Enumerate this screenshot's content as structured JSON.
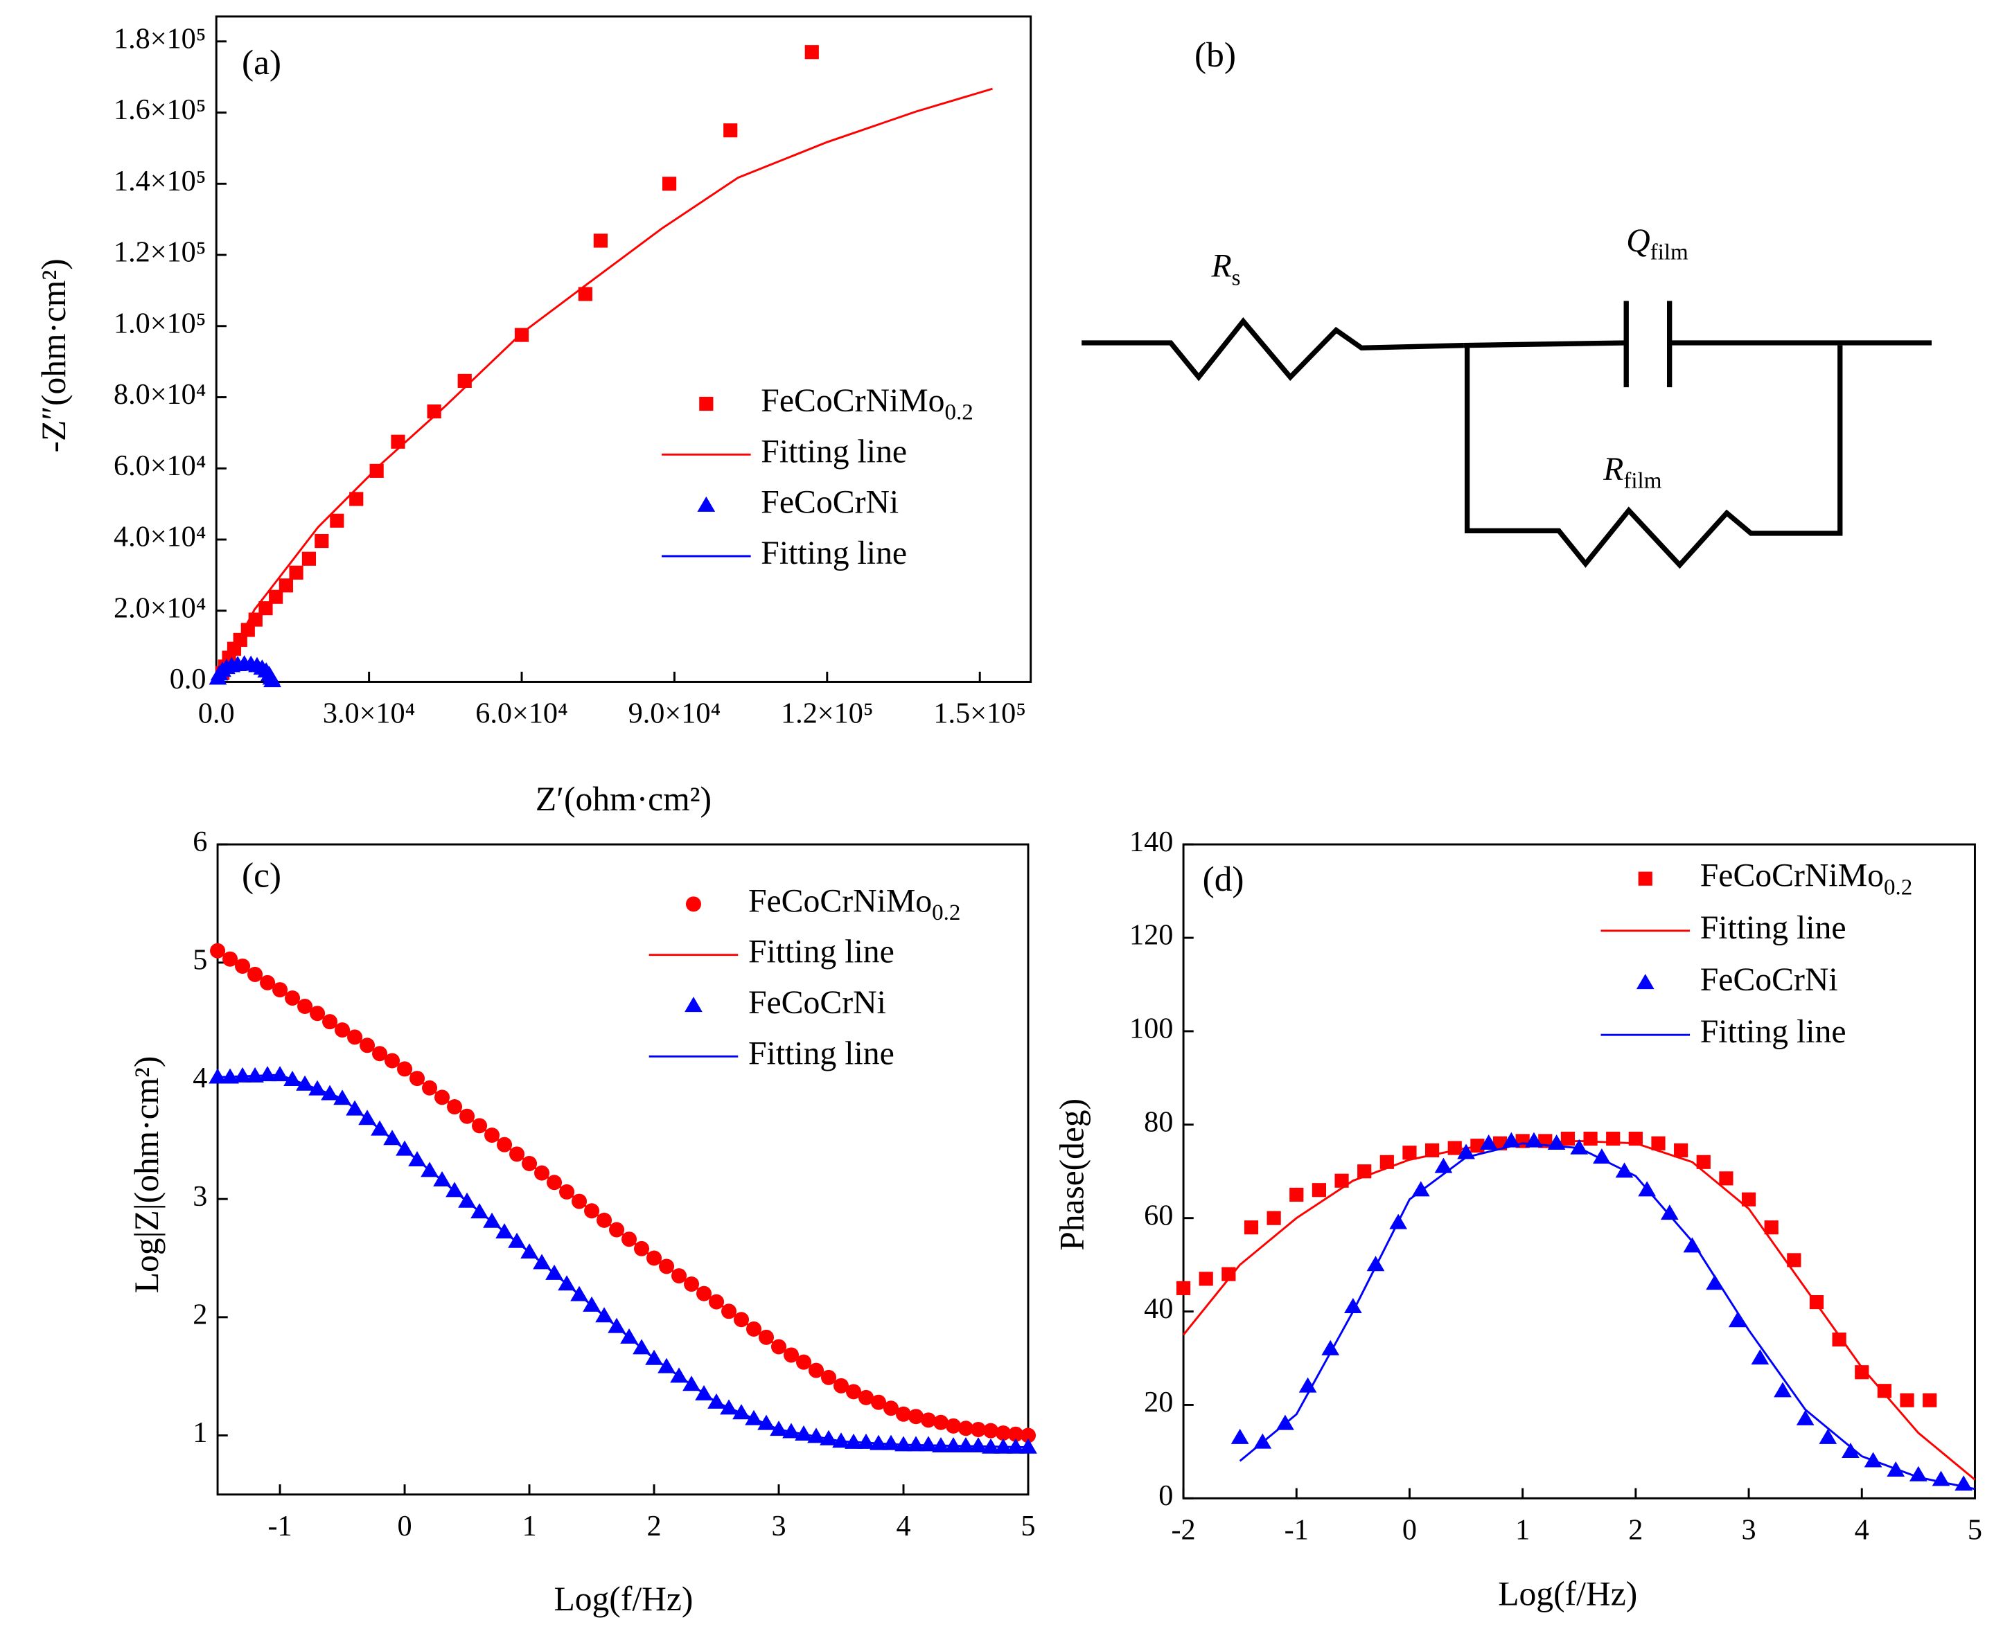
{
  "chart_data": [
    {
      "type": "scatter",
      "label": "(a)",
      "xlabel": "Z′(ohm·cm²)",
      "ylabel": "-Z″(ohm·cm²)",
      "xlim": [
        0,
        160000
      ],
      "ylim": [
        0,
        187000
      ],
      "legend": "center right",
      "xticks": [
        {
          "value": 0,
          "label": "0.0"
        },
        {
          "value": 30000,
          "label": "3.0×10⁴"
        },
        {
          "value": 60000,
          "label": "6.0×10⁴"
        },
        {
          "value": 90000,
          "label": "9.0×10⁴"
        },
        {
          "value": 120000,
          "label": "1.2×10⁵"
        },
        {
          "value": 150000,
          "label": "1.5×10⁵"
        }
      ],
      "yticks": [
        {
          "value": 0,
          "label": "0.0"
        },
        {
          "value": 20000,
          "label": "2.0×10⁴"
        },
        {
          "value": 40000,
          "label": "4.0×10⁴"
        },
        {
          "value": 60000,
          "label": "6.0×10⁴"
        },
        {
          "value": 80000,
          "label": "8.0×10⁴"
        },
        {
          "value": 100000,
          "label": "1.0×10⁵"
        },
        {
          "value": 120000,
          "label": "1.2×10⁵"
        },
        {
          "value": 140000,
          "label": "1.4×10⁵"
        },
        {
          "value": 160000,
          "label": "1.6×10⁵"
        },
        {
          "value": 180000,
          "label": "1.8×10⁵"
        }
      ],
      "series": [
        {
          "name": "FeCoCrNiMo0.2",
          "color": "#ff0000",
          "marker": "square",
          "x": [
            117000,
            101000,
            89000,
            75500,
            72500,
            60000,
            48800,
            42800,
            35700,
            31500,
            27500,
            23700,
            20700,
            18200,
            15700,
            13700,
            11700,
            9700,
            7700,
            6200,
            4700,
            3500,
            2500,
            1700,
            1200
          ],
          "values": [
            177000,
            155000,
            140000,
            124000,
            109000,
            97500,
            84600,
            76000,
            67500,
            59300,
            51400,
            45300,
            39600,
            34600,
            30700,
            27100,
            23900,
            20700,
            17500,
            14600,
            11800,
            9300,
            6800,
            4300,
            2500
          ]
        },
        {
          "name": "Fitting line",
          "color": "#ff0000",
          "x": [
            0,
            7500,
            20000,
            32500,
            45000,
            60000,
            72500,
            87500,
            102500,
            120000,
            137500,
            152500
          ],
          "values": [
            0,
            20300,
            43500,
            61400,
            77500,
            98000,
            111400,
            127400,
            141700,
            151700,
            160300,
            166700
          ]
        },
        {
          "name": "FeCoCrNi",
          "color": "#0000ff",
          "marker": "triangle",
          "x": [
            300,
            600,
            1200,
            2000,
            3000,
            4200,
            5500,
            6800,
            8000,
            9000,
            9800,
            10400,
            10800,
            11000
          ],
          "values": [
            1000,
            2200,
            3200,
            4000,
            4500,
            4800,
            5000,
            4900,
            4500,
            3800,
            3000,
            2000,
            1000,
            300
          ]
        },
        {
          "name": "Fitting line",
          "color": "#0000ff",
          "x": [
            300,
            600,
            1200,
            2000,
            3000,
            4200,
            5500,
            6800,
            8000,
            9000,
            9800,
            10400,
            10800,
            11000
          ],
          "values": [
            1000,
            2200,
            3200,
            4000,
            4500,
            4800,
            5000,
            4900,
            4500,
            3800,
            3000,
            2000,
            1000,
            300
          ]
        }
      ]
    },
    {
      "type": "scatter",
      "label": "(c)",
      "xlabel": "Log(f/Hz)",
      "ylabel": "Log|Z|(ohm·cm²)",
      "xlim": [
        -1.5,
        5
      ],
      "ylim": [
        0.5,
        6
      ],
      "legend": "upper right",
      "xticks": [
        -1,
        0,
        1,
        2,
        3,
        4,
        5
      ],
      "yticks": [
        1,
        2,
        3,
        4,
        5,
        6
      ],
      "series": [
        {
          "name": "FeCoCrNiMo0.2",
          "color": "#ff0000",
          "marker": "circle",
          "x": [
            -1.5,
            -1.4,
            -1.3,
            -1.2,
            -1.1,
            -1.0,
            -0.9,
            -0.8,
            -0.7,
            -0.6,
            -0.5,
            -0.4,
            -0.3,
            -0.2,
            -0.1,
            0,
            0.1,
            0.2,
            0.3,
            0.4,
            0.5,
            0.6,
            0.7,
            0.8,
            0.9,
            1.0,
            1.1,
            1.2,
            1.3,
            1.4,
            1.5,
            1.6,
            1.7,
            1.8,
            1.9,
            2.0,
            2.1,
            2.2,
            2.3,
            2.4,
            2.5,
            2.6,
            2.7,
            2.8,
            2.9,
            3.0,
            3.1,
            3.2,
            3.3,
            3.4,
            3.5,
            3.6,
            3.7,
            3.8,
            3.9,
            4.0,
            4.1,
            4.2,
            4.3,
            4.4,
            4.5,
            4.6,
            4.7,
            4.8,
            4.9,
            5.0
          ],
          "values": [
            5.1,
            5.03,
            4.97,
            4.9,
            4.83,
            4.77,
            4.7,
            4.63,
            4.57,
            4.5,
            4.43,
            4.37,
            4.3,
            4.23,
            4.17,
            4.1,
            4.02,
            3.94,
            3.86,
            3.78,
            3.7,
            3.62,
            3.54,
            3.46,
            3.38,
            3.3,
            3.22,
            3.14,
            3.06,
            2.98,
            2.9,
            2.82,
            2.74,
            2.66,
            2.58,
            2.5,
            2.43,
            2.35,
            2.28,
            2.2,
            2.13,
            2.05,
            1.98,
            1.9,
            1.83,
            1.75,
            1.68,
            1.62,
            1.55,
            1.49,
            1.42,
            1.37,
            1.32,
            1.28,
            1.23,
            1.18,
            1.16,
            1.13,
            1.11,
            1.08,
            1.06,
            1.05,
            1.04,
            1.02,
            1.01,
            1.0
          ]
        },
        {
          "name": "Fitting line",
          "color": "#ff0000",
          "x": [
            -1.5,
            -1,
            -0.5,
            0,
            0.5,
            1,
            1.5,
            2,
            2.5,
            3,
            3.5,
            4,
            4.5,
            5
          ],
          "values": [
            5.1,
            4.77,
            4.43,
            4.1,
            3.7,
            3.3,
            2.9,
            2.5,
            2.13,
            1.75,
            1.42,
            1.18,
            1.06,
            1.0
          ]
        },
        {
          "name": "FeCoCrNi",
          "color": "#0000ff",
          "marker": "triangle",
          "x": [
            -1.5,
            -1.4,
            -1.3,
            -1.2,
            -1.1,
            -1.0,
            -0.9,
            -0.8,
            -0.7,
            -0.6,
            -0.5,
            -0.4,
            -0.3,
            -0.2,
            -0.1,
            0,
            0.1,
            0.2,
            0.3,
            0.4,
            0.5,
            0.6,
            0.7,
            0.8,
            0.9,
            1.0,
            1.1,
            1.2,
            1.3,
            1.4,
            1.5,
            1.6,
            1.7,
            1.8,
            1.9,
            2.0,
            2.1,
            2.2,
            2.3,
            2.4,
            2.5,
            2.6,
            2.7,
            2.8,
            2.9,
            3.0,
            3.1,
            3.2,
            3.3,
            3.4,
            3.5,
            3.6,
            3.7,
            3.8,
            3.9,
            4.0,
            4.1,
            4.2,
            4.3,
            4.4,
            4.5,
            4.6,
            4.7,
            4.8,
            4.9,
            5.0
          ],
          "values": [
            4.03,
            4.03,
            4.04,
            4.04,
            4.05,
            4.05,
            4.01,
            3.97,
            3.93,
            3.89,
            3.85,
            3.76,
            3.68,
            3.59,
            3.51,
            3.42,
            3.33,
            3.24,
            3.16,
            3.07,
            2.98,
            2.89,
            2.81,
            2.72,
            2.64,
            2.55,
            2.46,
            2.37,
            2.28,
            2.19,
            2.1,
            2.01,
            1.92,
            1.83,
            1.74,
            1.65,
            1.58,
            1.5,
            1.43,
            1.35,
            1.28,
            1.23,
            1.19,
            1.14,
            1.1,
            1.05,
            1.03,
            1.01,
            0.99,
            0.97,
            0.95,
            0.94,
            0.94,
            0.93,
            0.93,
            0.92,
            0.92,
            0.92,
            0.91,
            0.91,
            0.91,
            0.91,
            0.9,
            0.9,
            0.9,
            0.9
          ]
        },
        {
          "name": "Fitting line",
          "color": "#0000ff",
          "x": [
            -1.5,
            -1,
            -0.5,
            0,
            0.5,
            1,
            1.5,
            2,
            2.5,
            3,
            3.5,
            4,
            4.5,
            5
          ],
          "values": [
            4.03,
            4.05,
            3.85,
            3.42,
            2.98,
            2.55,
            2.1,
            1.65,
            1.28,
            1.05,
            0.95,
            0.92,
            0.91,
            0.9
          ]
        }
      ]
    },
    {
      "type": "scatter",
      "label": "(d)",
      "xlabel": "Log(f/Hz)",
      "ylabel": "Phase(deg)",
      "xlim": [
        -2,
        5
      ],
      "ylim": [
        0,
        140
      ],
      "legend": "upper right",
      "xticks": [
        -2,
        -1,
        0,
        1,
        2,
        3,
        4,
        5
      ],
      "yticks": [
        0,
        20,
        40,
        60,
        80,
        100,
        120,
        140
      ],
      "series": [
        {
          "name": "FeCoCrNiMo0.2",
          "color": "#ff0000",
          "marker": "square",
          "x": [
            -2,
            -1.8,
            -1.6,
            -1.4,
            -1.2,
            -1.0,
            -0.8,
            -0.6,
            -0.4,
            -0.2,
            0,
            0.2,
            0.4,
            0.6,
            0.8,
            1.0,
            1.2,
            1.4,
            1.6,
            1.8,
            2.0,
            2.2,
            2.4,
            2.6,
            2.8,
            3.0,
            3.2,
            3.4,
            3.6,
            3.8,
            4.0,
            4.2,
            4.4,
            4.6
          ],
          "values": [
            45,
            47,
            48,
            58,
            60,
            65,
            66,
            68,
            70,
            72,
            74,
            74.5,
            75,
            75.5,
            76,
            76.5,
            76.5,
            77,
            77,
            77,
            77,
            76,
            74.5,
            72,
            68.5,
            64,
            58,
            51,
            42,
            34,
            27,
            23,
            21,
            21
          ]
        },
        {
          "name": "Fitting line",
          "color": "#ff0000",
          "x": [
            -2,
            -1.5,
            -1,
            -0.5,
            0,
            0.5,
            1,
            1.5,
            2,
            2.5,
            3,
            3.5,
            4,
            4.5,
            5
          ],
          "values": [
            35,
            50,
            60,
            68,
            72.5,
            75,
            76,
            76.5,
            76,
            72,
            62,
            45,
            28,
            14,
            4
          ]
        },
        {
          "name": "FeCoCrNi",
          "color": "#0000ff",
          "marker": "triangle",
          "x": [
            -1.5,
            -1.3,
            -1.1,
            -0.9,
            -0.7,
            -0.5,
            -0.3,
            -0.1,
            0.1,
            0.3,
            0.5,
            0.7,
            0.9,
            1.1,
            1.3,
            1.5,
            1.7,
            1.9,
            2.1,
            2.3,
            2.5,
            2.7,
            2.9,
            3.1,
            3.3,
            3.5,
            3.7,
            3.9,
            4.1,
            4.3,
            4.5,
            4.7,
            4.9
          ],
          "values": [
            13,
            12,
            16,
            24,
            32,
            41,
            50,
            59,
            66,
            71,
            74,
            76,
            76.5,
            76.5,
            76,
            75,
            73,
            70,
            66,
            61,
            54,
            46,
            38,
            30,
            23,
            17,
            13,
            10,
            8,
            6,
            5,
            4,
            3
          ]
        },
        {
          "name": "Fitting line",
          "color": "#0000ff",
          "x": [
            -1.5,
            -1,
            -0.5,
            0,
            0.5,
            1,
            1.5,
            2,
            2.5,
            3,
            3.5,
            4,
            4.5,
            5
          ],
          "values": [
            8,
            18,
            40,
            64,
            73,
            76,
            75,
            69,
            55,
            36,
            19,
            9,
            4.5,
            2
          ]
        }
      ]
    }
  ],
  "circuit": {
    "label": "(b)",
    "elements": [
      {
        "symbol": "R",
        "subscript": "s"
      },
      {
        "symbol": "Q",
        "subscript": "film"
      },
      {
        "symbol": "R",
        "subscript": "film"
      }
    ]
  }
}
